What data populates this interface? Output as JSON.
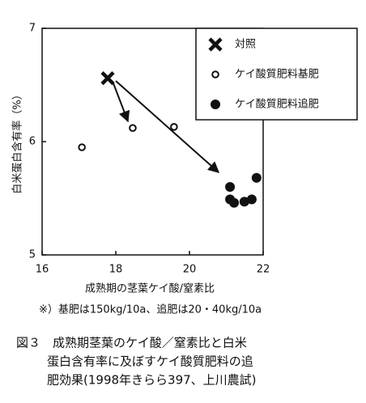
{
  "chart_data": {
    "type": "scatter",
    "y_label": "白米蛋白含有率（%）",
    "x_label": "成熟期の茎葉ケイ酸/窒素比",
    "note": "※）基肥は150kg/10a、追肥は20・40kg/10a",
    "caption": [
      "図３　成熟期茎葉のケイ酸／窒素比と白米",
      "蛋白含有率に及ぼすケイ酸質肥料の追",
      "肥効果(1998年きらら397、上川農試)"
    ],
    "xlim": [
      16,
      22
    ],
    "ylim": [
      5,
      7
    ],
    "xticks": [
      16,
      18,
      20,
      22
    ],
    "yticks": [
      5,
      6,
      7
    ],
    "grid": false,
    "legend": "upper right",
    "series": [
      {
        "name": "対照",
        "color": "#111111",
        "marker": "x",
        "x": [
          17.78
        ],
        "values": [
          6.56
        ]
      },
      {
        "name": "ケイ酸質肥料基肥",
        "color": "#111111",
        "marker": "open",
        "x": [
          17.08,
          18.46,
          19.58
        ],
        "values": [
          5.95,
          6.12,
          6.13
        ]
      },
      {
        "name": "ケイ酸質肥料追肥",
        "color": "#111111",
        "marker": "filled",
        "x": [
          21.1,
          21.1,
          21.21,
          21.49,
          21.69,
          21.82
        ],
        "values": [
          5.6,
          5.49,
          5.46,
          5.47,
          5.49,
          5.68
        ]
      }
    ]
  }
}
